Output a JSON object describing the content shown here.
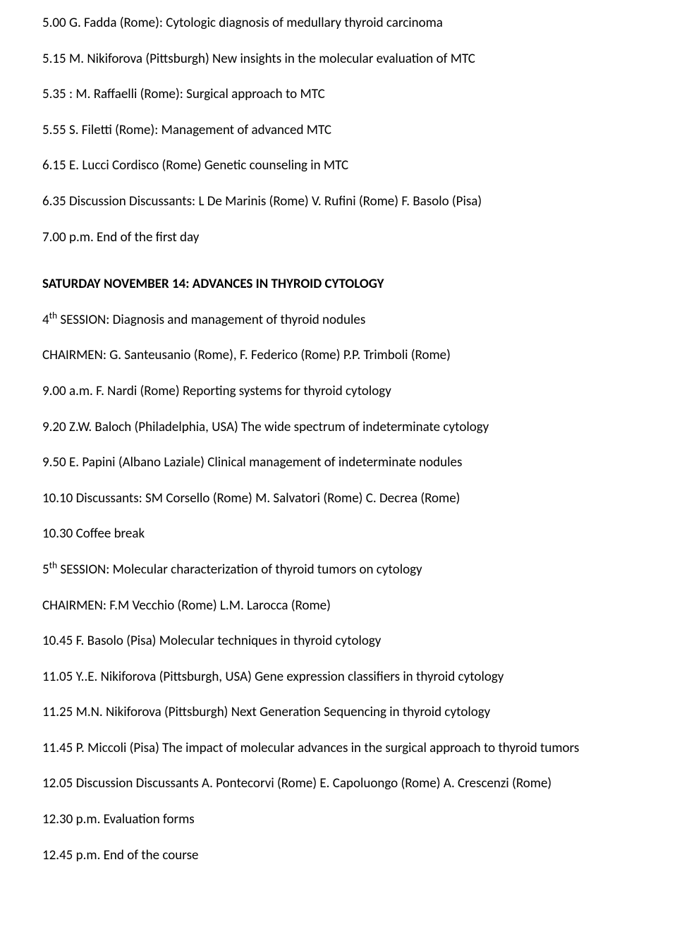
{
  "entries": [
    "5.00  G. Fadda (Rome): Cytologic diagnosis of medullary thyroid carcinoma",
    "5.15 M. Nikiforova (Pittsburgh) New insights in the molecular evaluation of MTC",
    "5.35 : M. Raffaelli (Rome): Surgical approach to MTC",
    "5.55 S. Filetti (Rome):  Management of advanced MTC",
    "6.15 E. Lucci Cordisco (Rome) Genetic counseling in MTC",
    "6.35 Discussion Discussants: L De Marinis (Rome) V. Rufini (Rome) F. Basolo (Pisa)",
    "7.00 p.m. End of the first day"
  ],
  "heading": "SATURDAY NOVEMBER 14: ADVANCES IN THYROID CYTOLOGY",
  "session4": {
    "ordinal": "4",
    "suffix": "th",
    "text": "  SESSION: Diagnosis and management of thyroid nodules"
  },
  "chairmen4": " CHAIRMEN: G. Santeusanio (Rome), F. Federico (Rome) P.P. Trimboli (Rome)",
  "mid": [
    "9.00 a.m. F. Nardi (Rome)  Reporting systems for thyroid cytology",
    "9.20  Z.W. Baloch (Philadelphia, USA) The wide spectrum of indeterminate cytology",
    "9.50  E. Papini (Albano Laziale) Clinical management of indeterminate nodules",
    "10.10 Discussants: SM Corsello (Rome) M. Salvatori (Rome) C. Decrea (Rome)",
    "10.30 Coffee break"
  ],
  "session5": {
    "ordinal": "5",
    "suffix": "th",
    "text": "  SESSION: Molecular characterization of thyroid tumors on cytology"
  },
  "chairmen5": " CHAIRMEN: F.M Vecchio (Rome) L.M. Larocca (Rome)",
  "tail": [
    "10.45  F. Basolo (Pisa) Molecular techniques in thyroid cytology",
    "11.05 Y..E. Nikiforova (Pittsburgh, USA) Gene expression classifiers in thyroid cytology",
    "11.25 M.N. Nikiforova (Pittsburgh) Next Generation Sequencing in thyroid cytology",
    "11.45 P. Miccoli (Pisa) The impact of molecular advances in the surgical approach to thyroid tumors",
    "12.05 Discussion  Discussants A. Pontecorvi (Rome) E. Capoluongo (Rome) A. Crescenzi (Rome)",
    "12.30 p.m.  Evaluation forms",
    "12.45 p.m. End of the course"
  ]
}
